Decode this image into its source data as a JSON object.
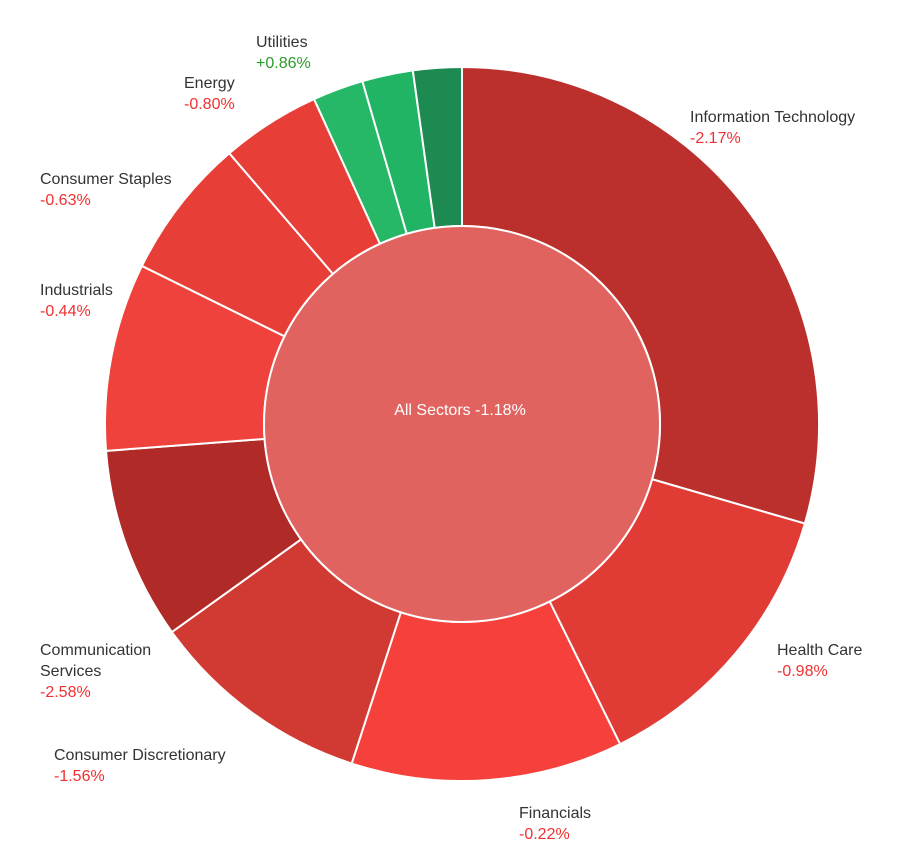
{
  "chart_data": {
    "type": "pie",
    "center": {
      "name": "All Sectors",
      "change": "-1.18%"
    },
    "sectors": [
      {
        "name": "Information Technology",
        "change": "-2.17%",
        "weight": 29.5,
        "color": "#bb302d"
      },
      {
        "name": "Health Care",
        "change": "-0.98%",
        "weight": 13.2,
        "color": "#e03c35"
      },
      {
        "name": "Financials",
        "change": "-0.22%",
        "weight": 12.3,
        "color": "#f5403b"
      },
      {
        "name": "Consumer Discretionary",
        "change": "-1.56%",
        "weight": 10.1,
        "color": "#d13a33"
      },
      {
        "name": "Communication Services",
        "change": "-2.58%",
        "weight": 8.7,
        "color": "#b02a28"
      },
      {
        "name": "Industrials",
        "change": "-0.44%",
        "weight": 8.5,
        "color": "#f0423c"
      },
      {
        "name": "Consumer Staples",
        "change": "-0.63%",
        "weight": 6.4,
        "color": "#e83e38"
      },
      {
        "name": "Energy",
        "change": "-0.80%",
        "weight": 4.5,
        "color": "#e83e38"
      },
      {
        "name": "",
        "change": "",
        "weight": 2.3,
        "color": "#26b866"
      },
      {
        "name": "",
        "change": "",
        "weight": 2.3,
        "color": "#21b464"
      },
      {
        "name": "Utilities",
        "change": "+0.86%",
        "weight": 2.2,
        "color": "#1d8a51"
      }
    ],
    "colors": {
      "negative_text": "#f03030",
      "positive_text": "#2a9a2a",
      "center_fill": "#e06360"
    }
  }
}
